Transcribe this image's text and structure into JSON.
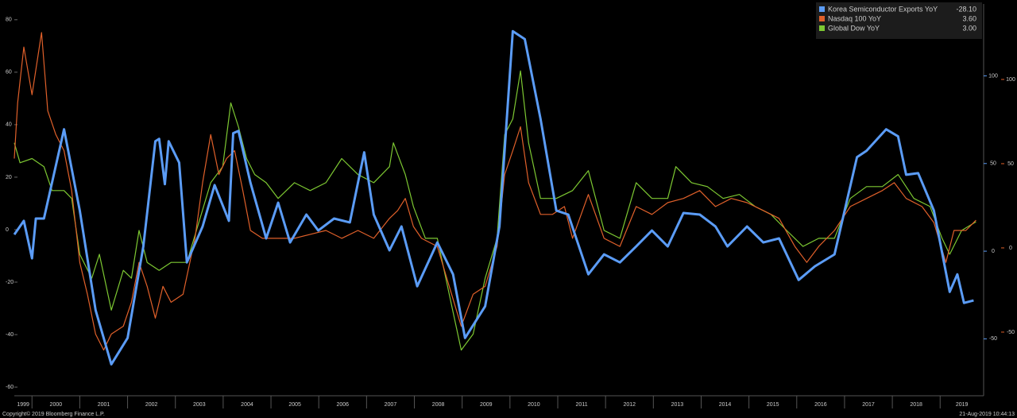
{
  "chart_data": {
    "type": "line",
    "xlim": [
      1999.63,
      2019.91
    ],
    "xticks": [
      {
        "value": 1999,
        "label": "1999"
      },
      {
        "value": 2000,
        "label": "2000"
      },
      {
        "value": 2001,
        "label": "2001"
      },
      {
        "value": 2002,
        "label": "2002"
      },
      {
        "value": 2003,
        "label": "2003"
      },
      {
        "value": 2004,
        "label": "2004"
      },
      {
        "value": 2005,
        "label": "2005"
      },
      {
        "value": 2006,
        "label": "2006"
      },
      {
        "value": 2007,
        "label": "2007"
      },
      {
        "value": 2008,
        "label": "2008"
      },
      {
        "value": 2009,
        "label": "2009"
      },
      {
        "value": 2010,
        "label": "2010"
      },
      {
        "value": 2011,
        "label": "2011"
      },
      {
        "value": 2012,
        "label": "2012"
      },
      {
        "value": 2013,
        "label": "2013"
      },
      {
        "value": 2014,
        "label": "2014"
      },
      {
        "value": 2015,
        "label": "2015"
      },
      {
        "value": 2016,
        "label": "2016"
      },
      {
        "value": 2017,
        "label": "2017"
      },
      {
        "value": 2018,
        "label": "2018"
      },
      {
        "value": 2019,
        "label": "2019"
      }
    ],
    "ylim": [
      -63,
      86
    ],
    "yticks": [
      -60,
      -40,
      -20,
      0,
      20,
      40,
      60,
      80
    ],
    "ytick_color": "#d8c890",
    "y2lim": [
      -82,
      141
    ],
    "y2ticks": [
      -50,
      0,
      50,
      100
    ],
    "y2tick_color": "#5b9cf6",
    "y3lim": [
      -87.3,
      144.8
    ],
    "y3ticks": [
      -50,
      0,
      50,
      100
    ],
    "y3tick_color": "#e0602a",
    "grid": false,
    "legend": "top-right",
    "copyright": "Copyright© 2019 Bloomberg Finance L.P.",
    "timestamp": "21-Aug-2019 10:44:13",
    "series": [
      {
        "name": "Korea Semiconductor Exports YoY",
        "color": "#5b9cf6",
        "axis": "y2",
        "last_label": "-28.10",
        "x": [
          1999.63,
          1999.83,
          2000.0,
          2000.08,
          2000.25,
          2000.67,
          2001.0,
          2001.33,
          2001.66,
          2002.0,
          2002.33,
          2002.58,
          2002.66,
          2002.78,
          2002.86,
          2003.08,
          2003.24,
          2003.57,
          2003.82,
          2004.12,
          2004.21,
          2004.32,
          2004.57,
          2004.9,
          2005.15,
          2005.4,
          2005.74,
          2005.99,
          2006.32,
          2006.65,
          2006.95,
          2007.15,
          2007.48,
          2007.73,
          2008.06,
          2008.48,
          2008.81,
          2009.06,
          2009.48,
          2009.78,
          2010.06,
          2010.31,
          2010.64,
          2010.97,
          2011.22,
          2011.64,
          2011.97,
          2012.3,
          2012.64,
          2012.97,
          2013.3,
          2013.63,
          2013.97,
          2014.3,
          2014.55,
          2014.96,
          2015.3,
          2015.63,
          2016.04,
          2016.38,
          2016.79,
          2017.26,
          2017.46,
          2017.87,
          2018.12,
          2018.29,
          2018.54,
          2018.87,
          2019.2,
          2019.36,
          2019.5,
          2019.7
        ],
        "values": [
          9.5,
          17.3,
          -4.1,
          18.6,
          18.6,
          69.5,
          23.2,
          -33.6,
          -64.5,
          -49.5,
          2.7,
          62.7,
          64.1,
          38.2,
          62.7,
          50.5,
          -6.4,
          14.1,
          37.7,
          17.3,
          67.3,
          68.6,
          39.1,
          7.3,
          27.7,
          5,
          20.9,
          11.8,
          18.6,
          16.4,
          56.4,
          20.9,
          0.5,
          14.1,
          -20,
          5,
          -13.2,
          -49.5,
          -31.4,
          14.1,
          125.5,
          120.9,
          75.5,
          23.2,
          20.9,
          -13.2,
          -1.8,
          -6.4,
          2.7,
          11.8,
          2.7,
          21.8,
          20.9,
          14.1,
          2.7,
          14.1,
          5,
          7.3,
          -16.4,
          -8.6,
          -1.8,
          53.6,
          57.3,
          69.5,
          65.5,
          43.6,
          44.5,
          23.2,
          -23.2,
          -13.2,
          -29.5,
          -28.1
        ]
      },
      {
        "name": "Nasdaq 100 YoY",
        "color": "#e0602a",
        "axis": "y",
        "last_label": "3.60",
        "x": [
          1999.63,
          1999.7,
          1999.83,
          2000.0,
          2000.2,
          2000.33,
          2000.5,
          2000.67,
          2000.83,
          2001.0,
          2001.16,
          2001.33,
          2001.5,
          2001.66,
          2001.91,
          2002.08,
          2002.24,
          2002.41,
          2002.58,
          2002.74,
          2002.91,
          2003.16,
          2003.41,
          2003.57,
          2003.74,
          2003.91,
          2004.07,
          2004.24,
          2004.41,
          2004.57,
          2004.82,
          2005.15,
          2005.49,
          2005.82,
          2006.15,
          2006.48,
          2006.82,
          2007.15,
          2007.48,
          2007.65,
          2007.81,
          2007.98,
          2008.15,
          2008.48,
          2008.73,
          2008.98,
          2009.23,
          2009.48,
          2009.73,
          2009.89,
          2010.06,
          2010.22,
          2010.39,
          2010.64,
          2010.89,
          2011.14,
          2011.31,
          2011.64,
          2011.97,
          2012.3,
          2012.64,
          2012.97,
          2013.3,
          2013.63,
          2013.97,
          2014.3,
          2014.63,
          2014.96,
          2015.3,
          2015.63,
          2015.96,
          2016.21,
          2016.46,
          2016.79,
          2017.12,
          2017.46,
          2017.79,
          2018.04,
          2018.29,
          2018.62,
          2018.87,
          2019.12,
          2019.29,
          2019.54,
          2019.75
        ],
        "values": [
          27.1,
          48.3,
          69.6,
          51.4,
          75.1,
          45.3,
          36.2,
          30.1,
          14.9,
          -12.5,
          -24.6,
          -39.8,
          -45.9,
          -39.8,
          -36.8,
          -27.7,
          -12.5,
          -21.6,
          -33.7,
          -21.6,
          -27.7,
          -24.6,
          -3.3,
          17.9,
          36.2,
          21,
          27.1,
          30.1,
          14.9,
          -0.3,
          -3.3,
          -3.3,
          -3.3,
          -1.8,
          -0.3,
          -3.3,
          -0.3,
          -3.3,
          4.3,
          7.3,
          11.9,
          1.2,
          -3.3,
          -6.4,
          -21.6,
          -36.8,
          -24.6,
          -21.6,
          -6.4,
          21,
          30.1,
          39.2,
          17.9,
          5.8,
          5.8,
          8.8,
          -3.3,
          13.4,
          -3.3,
          -6.4,
          8.8,
          5.8,
          10.3,
          11.9,
          14.9,
          8.8,
          11.9,
          10.3,
          7.3,
          4.3,
          -6.4,
          -12.5,
          -6.4,
          -0.3,
          8.8,
          11.9,
          14.9,
          17.9,
          11.9,
          8.8,
          2.7,
          -12.5,
          -0.3,
          -0.3,
          3.6
        ]
      },
      {
        "name": "Global Dow YoY",
        "color": "#7dc832",
        "axis": "y",
        "last_label": "3.00",
        "x": [
          1999.63,
          1999.75,
          2000.0,
          2000.25,
          2000.42,
          2000.67,
          2000.83,
          2001.0,
          2001.25,
          2001.41,
          2001.66,
          2001.91,
          2002.08,
          2002.24,
          2002.41,
          2002.66,
          2002.91,
          2003.24,
          2003.49,
          2003.74,
          2003.99,
          2004.16,
          2004.32,
          2004.49,
          2004.66,
          2004.9,
          2005.15,
          2005.49,
          2005.82,
          2006.15,
          2006.48,
          2006.82,
          2007.15,
          2007.48,
          2007.56,
          2007.81,
          2007.98,
          2008.23,
          2008.48,
          2008.73,
          2008.98,
          2009.23,
          2009.48,
          2009.73,
          2009.89,
          2010.06,
          2010.22,
          2010.39,
          2010.64,
          2010.97,
          2011.31,
          2011.64,
          2011.97,
          2012.3,
          2012.64,
          2012.97,
          2013.3,
          2013.47,
          2013.8,
          2014.13,
          2014.46,
          2014.8,
          2015.13,
          2015.46,
          2015.79,
          2016.13,
          2016.46,
          2016.79,
          2017.12,
          2017.46,
          2017.79,
          2018.12,
          2018.45,
          2018.79,
          2019.04,
          2019.2,
          2019.45,
          2019.75
        ],
        "values": [
          33.1,
          25.5,
          27.1,
          24,
          14.9,
          14.9,
          11.9,
          -9.4,
          -18.5,
          -9.4,
          -30.7,
          -15.5,
          -18.5,
          -0.3,
          -12.5,
          -15.5,
          -12.5,
          -12.5,
          2.7,
          17.9,
          24,
          48.3,
          39.2,
          27.1,
          21,
          17.9,
          11.9,
          17.9,
          14.9,
          17.9,
          27.1,
          21,
          17.9,
          24,
          33.1,
          21,
          8.8,
          -3.3,
          -3.3,
          -24.6,
          -45.9,
          -39.8,
          -18.5,
          -3.3,
          36.2,
          42.2,
          60.5,
          33.1,
          11.9,
          11.9,
          14.9,
          22.5,
          -0.3,
          -3.3,
          17.9,
          11.9,
          11.9,
          24,
          17.9,
          16.4,
          11.9,
          13.4,
          8.8,
          5.8,
          -0.3,
          -6.4,
          -3.3,
          -3.3,
          11.9,
          16.4,
          16.4,
          21,
          11.9,
          8.8,
          -3.3,
          -9.4,
          -0.3,
          3.0
        ]
      }
    ]
  }
}
